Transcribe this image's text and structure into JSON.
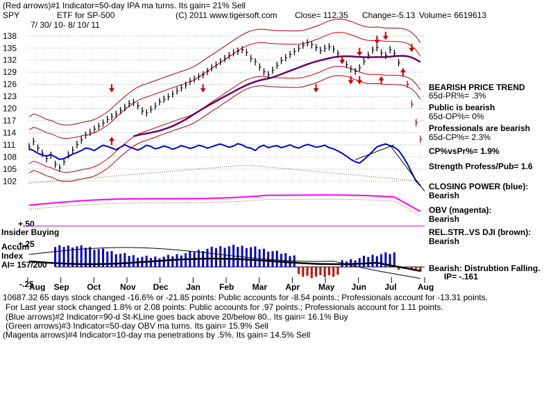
{
  "header": {
    "line1": "(Red arrows)#1 Indicator=50-day IPA ma turns.  Its gain= 21% Sell",
    "symbol": "SPY",
    "description": "ETF for SP-500",
    "copyright": "(C) 2011 www.tigersoft.com",
    "close": "Close=   112.35",
    "change": "Change=-5.13",
    "volume": "Volume= 6619613",
    "date_range": "7/ 30/ 10-  8/ 10/ 11"
  },
  "indicators": {
    "trend_title": "BEARISH PRICE TREND",
    "pr": "65d-PR%= .3%",
    "public_title": "Public is bearish",
    "op": "65d-OP%= 0%",
    "pro_title": "Professionals are bearish",
    "cp": "65d-CP%= 2.3%",
    "cpvspr": "CP%vsPr%=  1.9%",
    "strength": "Strength Profess/Pub= 1.6",
    "closing_power": "CLOSING POWER (blue):",
    "closing_power_val": "Bearish",
    "obv": "OBV (magenta):",
    "obv_val": "Bearish",
    "relstr": "REL.STR..VS DJI (brown):",
    "relstr_val": "Bearish",
    "accum": "Bearish: Distrubtion Falling.",
    "ip": "IP= -.161"
  },
  "panel_labels": {
    "plus50": "+.50",
    "insider": "Insider Buying",
    "accum": "Accum",
    "index": "Index",
    "ai": "AI= 157/200",
    "plus25": "+.25",
    "minus25": "-.25"
  },
  "footer": {
    "line1": "10687.32 65 days stock changed -16.6% or -21.85 points:  Public accounts for -8.54 points.;  Professionals account for -13.31 points.",
    "line2": "For Last year stock changed  1.8% or  2.08 points:  Public accounts for  .97 points.;  Professionals account for  1.11 points.",
    "line3": "(Blue arrows)#2 Indicator=90-d St-KLine goes back above 20/below 80..  Its gain= 16.1% Buy",
    "line4": "(Green arrows)#3 Indicator=50-day OBV ma turns.  Its gain= 15.9% Sell",
    "line5": "(Magenta arrows)#4 Indicator=10-day ma penetrations by .5%.  Its gain= 14.5% Sell"
  },
  "colors": {
    "price": "#000000",
    "band": "#cc0000",
    "ma": "#660066",
    "closing_power": "#0000cc",
    "obv": "#ff00ff",
    "relstr": "#8b4513",
    "accum_pos": "#0000cc",
    "accum_neg": "#cc0000",
    "grid": "#7fbfbf"
  },
  "chart_data": {
    "type": "line",
    "y_ticks": [
      102,
      105,
      108,
      111,
      114,
      117,
      120,
      123,
      126,
      129,
      132,
      135,
      138
    ],
    "ylim": [
      100.5,
      139
    ],
    "x_labels": [
      "Aug",
      "Sep",
      "Oct",
      "Nov",
      "Dec",
      "Jan",
      "Feb",
      "Mar",
      "Apr",
      "May",
      "Jun",
      "Jul",
      "Aug"
    ],
    "series": [
      {
        "values": [
          110.5,
          111.8,
          110.2,
          108.9,
          107.6,
          108.4,
          106.2,
          105.3,
          106.8,
          108.5,
          109.7,
          111.1,
          112.2,
          113.4,
          114.1,
          114.9,
          115.6,
          116.4,
          117.3,
          118.0,
          118.6,
          119.5,
          120.3,
          121.2,
          121.5,
          120.7,
          119.4,
          118.9,
          119.8,
          120.6,
          121.7,
          122.3,
          122.9,
          123.6,
          124.4,
          125.1,
          125.8,
          126.7,
          127.3,
          127.9,
          128.4,
          129.2,
          130.1,
          130.8,
          131.6,
          132.4,
          133.1,
          133.8,
          134.2,
          134.6,
          133.9,
          132.4,
          131.6,
          130.3,
          129.1,
          128.4,
          129.5,
          130.7,
          131.9,
          132.6,
          133.4,
          134.1,
          134.9,
          135.7,
          136.3,
          135.8,
          135.1,
          134.4,
          134.9,
          135.3,
          134.7,
          133.6,
          132.1,
          130.9,
          129.8,
          129.2,
          130.1,
          131.7,
          133.2,
          134.5,
          135.1,
          133.8,
          133.2,
          134.6,
          133.7,
          131.4,
          129.2,
          126.0,
          121.1,
          116.5,
          112.4
        ]
      },
      {
        "values": [
          110.0,
          109.6,
          108.9,
          108.5,
          108.2,
          108.6,
          108.0,
          107.4,
          107.6,
          108.1,
          108.7,
          109.1,
          109.6,
          110.2,
          110.0,
          109.6,
          110.3,
          110.9,
          110.6,
          110.2,
          109.8,
          110.4,
          111.0,
          110.5,
          110.1,
          109.7,
          110.2,
          110.9,
          110.6,
          110.0,
          110.3,
          110.7,
          110.4,
          109.9,
          110.3,
          110.8,
          110.5,
          110.1,
          110.4,
          110.9,
          110.6,
          110.2,
          110.5,
          110.9,
          111.2,
          110.8,
          110.4,
          110.7,
          111.3,
          111.0,
          110.4,
          110.2,
          109.6,
          110.5,
          110.9,
          110.3,
          110.6,
          110.8,
          110.3,
          110.6,
          111.0,
          110.5,
          110.2,
          110.7,
          111.1,
          110.8,
          110.4,
          110.6,
          110.9,
          110.3,
          110.0,
          109.5,
          108.9,
          108.2,
          107.4,
          106.8,
          106.5,
          107.3,
          108.3,
          109.4,
          110.5,
          110.9,
          111.2,
          110.8,
          110.4,
          109.6,
          108.1,
          106.3,
          104.1,
          102.0,
          100.9
        ]
      }
    ]
  }
}
